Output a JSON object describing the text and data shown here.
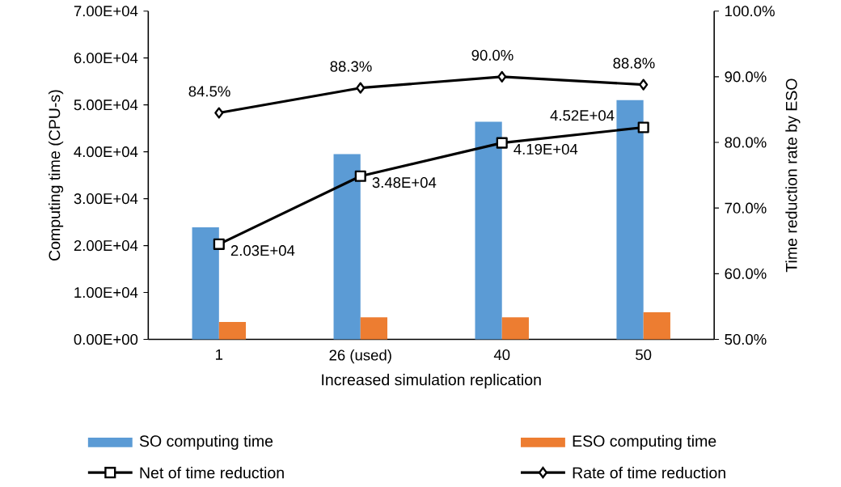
{
  "chart_data": {
    "type": "bar",
    "categories": [
      "1",
      "26 (used)",
      "40",
      "50"
    ],
    "xlabel": "Increased simulation replication",
    "ylabel": "Computing time (CPU-s)",
    "y2label": "Time reduction rate by ESO",
    "series": [
      {
        "name": "SO computing time",
        "color": "#5b9bd5",
        "values": [
          23900,
          39500,
          46400,
          51000
        ]
      },
      {
        "name": "ESO computing time",
        "color": "#ed7d31",
        "values": [
          3700,
          4700,
          4700,
          5800
        ]
      },
      {
        "name": "Net of time reduction",
        "type": "line",
        "color": "#000000",
        "marker": "square",
        "values": [
          20300,
          34800,
          41900,
          45200
        ],
        "value_labels": [
          "2.03E+04",
          "3.48E+04",
          "4.19E+04",
          "4.52E+04"
        ]
      },
      {
        "name": "Rate of time reduction",
        "type": "line",
        "axis": "y2",
        "color": "#000000",
        "marker": "diamond",
        "values": [
          84.5,
          88.3,
          90.0,
          88.8
        ],
        "value_labels": [
          "84.5%",
          "88.3%",
          "90.0%",
          "88.8%"
        ]
      }
    ],
    "ylim": [
      0,
      70000
    ],
    "yticks": [
      {
        "value": 0,
        "label": "0.00E+00"
      },
      {
        "value": 10000,
        "label": "1.00E+04"
      },
      {
        "value": 20000,
        "label": "2.00E+04"
      },
      {
        "value": 30000,
        "label": "3.00E+04"
      },
      {
        "value": 40000,
        "label": "4.00E+04"
      },
      {
        "value": 50000,
        "label": "5.00E+04"
      },
      {
        "value": 60000,
        "label": "6.00E+04"
      },
      {
        "value": 70000,
        "label": "7.00E+04"
      }
    ],
    "y2lim": [
      50,
      100
    ],
    "y2ticks": [
      {
        "value": 50,
        "label": "50.0%"
      },
      {
        "value": 60,
        "label": "60.0%"
      },
      {
        "value": 70,
        "label": "70.0%"
      },
      {
        "value": 80,
        "label": "80.0%"
      },
      {
        "value": 90,
        "label": "90.0%"
      },
      {
        "value": 100,
        "label": "100.0%"
      }
    ],
    "legend": "bottom"
  }
}
